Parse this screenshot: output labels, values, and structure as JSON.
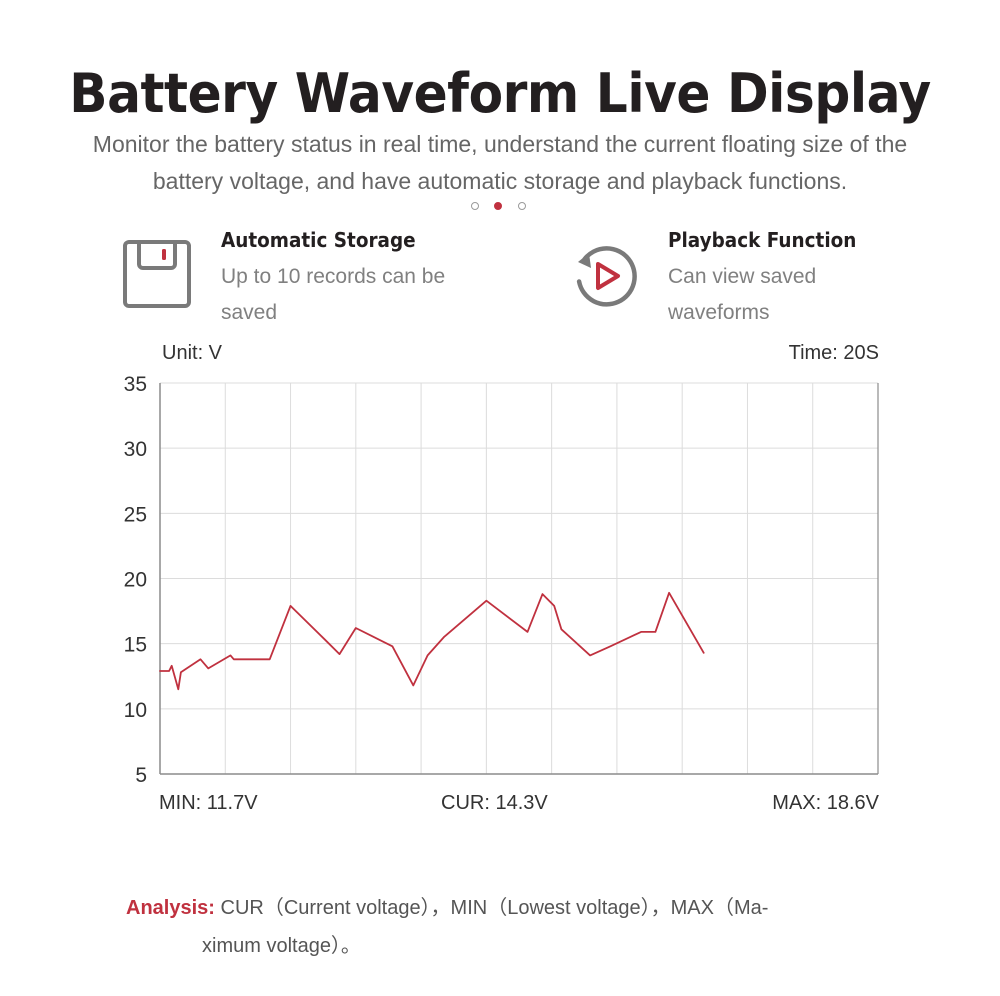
{
  "header": {
    "title": "Battery Waveform Live Display",
    "subtitle": "Monitor the battery status in real time, understand the current floating size of the battery voltage, and have automatic storage and playback functions."
  },
  "pager": {
    "count": 3,
    "active_index": 1
  },
  "features": [
    {
      "icon": "save-disk-icon",
      "title": "Automatic Storage",
      "description": "Up to 10 records can be saved"
    },
    {
      "icon": "playback-icon",
      "title": "Playback Function",
      "description": "Can view saved waveforms"
    }
  ],
  "colors": {
    "accent": "#c0313f",
    "icon_gray": "#7a7a7a",
    "grid": "#dcdcdc",
    "axis": "#8c8c8c"
  },
  "chart_data": {
    "type": "line",
    "unit_label": "Unit: V",
    "time_label": "Time: 20S",
    "ylim": [
      5,
      35
    ],
    "yticks": [
      "35",
      "30",
      "25",
      "20",
      "15",
      "10",
      "5"
    ],
    "xlim": [
      0,
      11
    ],
    "vertical_gridlines": 11,
    "grid": true,
    "series": [
      {
        "color": "#c0313f",
        "x": [
          0,
          0.14,
          0.18,
          0.28,
          0.32,
          0.62,
          0.74,
          1.08,
          1.13,
          1.68,
          2.0,
          2.53,
          2.75,
          3.0,
          3.56,
          3.88,
          4.1,
          4.35,
          5.0,
          5.63,
          5.86,
          6.04,
          6.15,
          6.59,
          6.9,
          7.37,
          7.59,
          7.8,
          8.33
        ],
        "y": [
          12.9,
          12.9,
          13.3,
          11.5,
          12.8,
          13.8,
          13.1,
          14.1,
          13.8,
          13.8,
          17.9,
          15.3,
          14.2,
          16.2,
          14.8,
          11.8,
          14.1,
          15.5,
          18.3,
          15.9,
          18.8,
          17.9,
          16.1,
          14.1,
          14.8,
          15.9,
          15.9,
          18.9,
          14.3
        ]
      }
    ],
    "stats": {
      "min": "MIN: 11.7V",
      "cur": "CUR: 14.3V",
      "max": "MAX: 18.6V"
    }
  },
  "analysis": {
    "label": "Analysis:",
    "line1": " CUR（Current voltage），MIN（Lowest voltage），MAX（Ma-",
    "line2": "ximum voltage）。"
  }
}
